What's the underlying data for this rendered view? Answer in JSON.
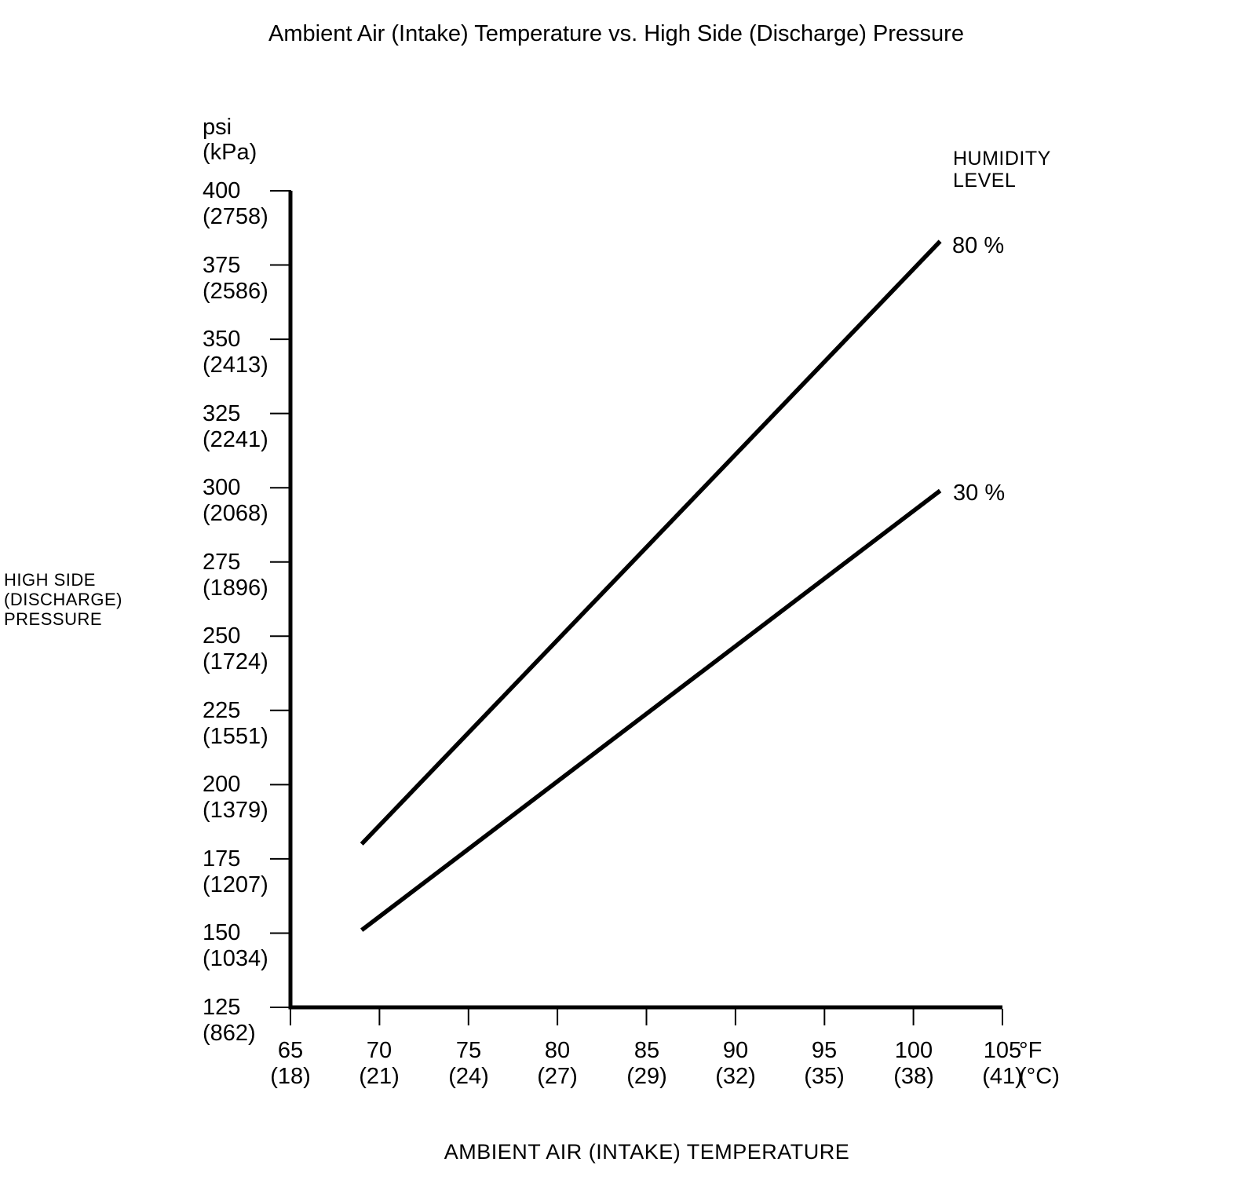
{
  "title": "Ambient Air (Intake) Temperature vs. High Side (Discharge) Pressure",
  "y_axis": {
    "unit_lines": [
      "psi",
      "(kPa)"
    ],
    "title_lines": [
      "HIGH SIDE",
      "(DISCHARGE)",
      "PRESSURE"
    ]
  },
  "x_axis": {
    "unit_lines": [
      "°F",
      "(°C)"
    ],
    "title": "AMBIENT AIR (INTAKE) TEMPERATURE"
  },
  "legend": {
    "title_lines": [
      "HUMIDITY",
      "LEVEL"
    ],
    "entries": [
      "80 %",
      "30 %"
    ]
  },
  "chart_data": {
    "type": "line",
    "title": "Ambient Air (Intake) Temperature vs. High Side (Discharge) Pressure",
    "xlabel": "AMBIENT AIR (INTAKE) TEMPERATURE",
    "ylabel": "HIGH SIDE (DISCHARGE) PRESSURE",
    "x_unit": "°F (°C)",
    "y_unit": "psi (kPa)",
    "xlim": [
      65,
      105
    ],
    "ylim": [
      125,
      400
    ],
    "x_ticks_f": [
      65,
      70,
      75,
      80,
      85,
      90,
      95,
      100,
      105
    ],
    "x_ticks_c": [
      18,
      21,
      24,
      27,
      29,
      32,
      35,
      38,
      41
    ],
    "y_ticks_psi": [
      125,
      150,
      175,
      200,
      225,
      250,
      275,
      300,
      325,
      350,
      375,
      400
    ],
    "y_ticks_kpa": [
      862,
      1034,
      1207,
      1379,
      1551,
      1724,
      1896,
      2068,
      2241,
      2413,
      2586,
      2758
    ],
    "grid": false,
    "legend_title": "HUMIDITY LEVEL",
    "legend_position": "right-of-line-ends",
    "series": [
      {
        "name": "80 %",
        "points_f_psi": [
          [
            69,
            180
          ],
          [
            101.5,
            383
          ]
        ]
      },
      {
        "name": "30 %",
        "points_f_psi": [
          [
            69,
            151
          ],
          [
            101.5,
            299
          ]
        ]
      }
    ],
    "colors": {
      "line": "#000000",
      "background": "#ffffff"
    }
  }
}
